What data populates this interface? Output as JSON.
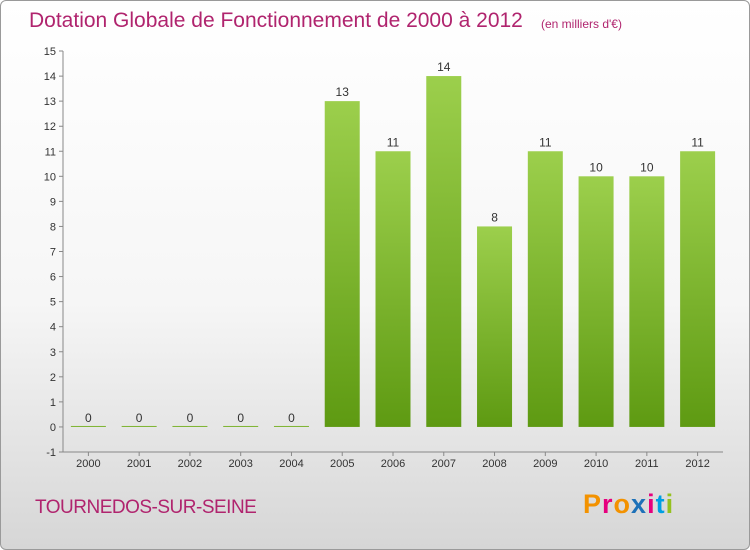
{
  "header": {
    "title": "Dotation Globale de Fonctionnement de 2000 à 2012",
    "subtitle": "(en milliers d'€)"
  },
  "footer": {
    "commune": "TOURNEDOS-SUR-SEINE",
    "logo_text": "Proxiti",
    "logo_colors": [
      "#f39200",
      "#e6007e",
      "#f39200",
      "#1d71b8",
      "#e6007e",
      "#009fe3",
      "#95c11f"
    ]
  },
  "colors": {
    "title": "#b0246e",
    "bar_light": "#9ccf4c",
    "bar_dark": "#5e9a12"
  },
  "chart_data": {
    "type": "bar",
    "title": "Dotation Globale de Fonctionnement de 2000 à 2012",
    "subtitle": "(en milliers d'€)",
    "xlabel": "",
    "ylabel": "",
    "categories": [
      "2000",
      "2001",
      "2002",
      "2003",
      "2004",
      "2005",
      "2006",
      "2007",
      "2008",
      "2009",
      "2010",
      "2011",
      "2012"
    ],
    "values": [
      0,
      0,
      0,
      0,
      0,
      13,
      11,
      14,
      8,
      11,
      10,
      10,
      11
    ],
    "data_labels": [
      "0",
      "0",
      "0",
      "0",
      "0",
      "13",
      "11",
      "14",
      "8",
      "11",
      "10",
      "10",
      "11"
    ],
    "y_ticks": [
      "-1",
      "0",
      "1",
      "2",
      "3",
      "4",
      "5",
      "6",
      "7",
      "8",
      "9",
      "10",
      "11",
      "12",
      "13",
      "14",
      "15"
    ],
    "ylim": [
      -1,
      15
    ],
    "grid": false,
    "legend": "none"
  }
}
